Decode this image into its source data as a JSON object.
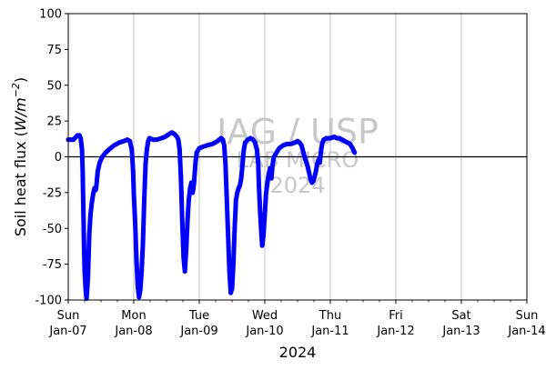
{
  "chart_data": {
    "type": "scatter",
    "title": "",
    "xlabel": "2024",
    "ylabel": "Soil heat flux (W/m⁻²)",
    "ylabel_parts": {
      "prefix": "Soil heat flux (",
      "unit": "W/m",
      "exponent": "−2",
      "suffix": ")"
    },
    "xlim": [
      "2024-01-07",
      "2024-01-14"
    ],
    "ylim": [
      -100,
      100
    ],
    "yticks": [
      -100,
      -75,
      -50,
      -25,
      0,
      25,
      50,
      75,
      100
    ],
    "xticks": [
      {
        "day": "Sun",
        "date": "Jan-07"
      },
      {
        "day": "Mon",
        "date": "Jan-08"
      },
      {
        "day": "Tue",
        "date": "Jan-09"
      },
      {
        "day": "Wed",
        "date": "Jan-10"
      },
      {
        "day": "Thu",
        "date": "Jan-11"
      },
      {
        "day": "Fri",
        "date": "Jan-12"
      },
      {
        "day": "Sat",
        "date": "Jan-13"
      },
      {
        "day": "Sun",
        "date": "Jan-14"
      }
    ],
    "grid": "vertical",
    "zero_line": true,
    "marker_color": "#0000ff",
    "x_format": "day-of-month + hour (2024-01)",
    "series": [
      {
        "points": [
          [
            7.0,
            12
          ],
          [
            7.04,
            12
          ],
          [
            7.08,
            12
          ],
          [
            7.1,
            13
          ],
          [
            7.12,
            14
          ],
          [
            7.14,
            15
          ],
          [
            7.17,
            15
          ],
          [
            7.19,
            13
          ],
          [
            7.21,
            5
          ],
          [
            7.22,
            -10
          ],
          [
            7.23,
            -35
          ],
          [
            7.24,
            -60
          ],
          [
            7.25,
            -80
          ],
          [
            7.27,
            -96
          ],
          [
            7.28,
            -99
          ],
          [
            7.3,
            -85
          ],
          [
            7.32,
            -55
          ],
          [
            7.34,
            -40
          ],
          [
            7.36,
            -32
          ],
          [
            7.38,
            -26
          ],
          [
            7.4,
            -22
          ],
          [
            7.42,
            -23
          ],
          [
            7.43,
            -20
          ],
          [
            7.45,
            -10
          ],
          [
            7.48,
            -4
          ],
          [
            7.52,
            0
          ],
          [
            7.57,
            3
          ],
          [
            7.62,
            5
          ],
          [
            7.7,
            8
          ],
          [
            7.78,
            10
          ],
          [
            7.85,
            11
          ],
          [
            7.9,
            12
          ],
          [
            7.94,
            11
          ],
          [
            7.97,
            5
          ],
          [
            7.99,
            -10
          ],
          [
            8.0,
            -25
          ],
          [
            8.02,
            -45
          ],
          [
            8.04,
            -70
          ],
          [
            8.06,
            -90
          ],
          [
            8.08,
            -98
          ],
          [
            8.1,
            -93
          ],
          [
            8.12,
            -80
          ],
          [
            8.14,
            -60
          ],
          [
            8.16,
            -30
          ],
          [
            8.18,
            -5
          ],
          [
            8.2,
            5
          ],
          [
            8.22,
            11
          ],
          [
            8.24,
            13
          ],
          [
            8.3,
            12
          ],
          [
            8.35,
            12
          ],
          [
            8.42,
            13
          ],
          [
            8.48,
            14
          ],
          [
            8.54,
            16
          ],
          [
            8.58,
            17
          ],
          [
            8.62,
            16
          ],
          [
            8.66,
            14
          ],
          [
            8.68,
            12
          ],
          [
            8.7,
            5
          ],
          [
            8.72,
            -15
          ],
          [
            8.74,
            -45
          ],
          [
            8.76,
            -70
          ],
          [
            8.78,
            -80
          ],
          [
            8.8,
            -65
          ],
          [
            8.82,
            -45
          ],
          [
            8.84,
            -30
          ],
          [
            8.86,
            -22
          ],
          [
            8.88,
            -18
          ],
          [
            8.9,
            -25
          ],
          [
            8.92,
            -18
          ],
          [
            8.94,
            -5
          ],
          [
            8.96,
            3
          ],
          [
            9.0,
            6
          ],
          [
            9.05,
            7
          ],
          [
            9.12,
            8
          ],
          [
            9.2,
            9
          ],
          [
            9.28,
            11
          ],
          [
            9.33,
            13
          ],
          [
            9.36,
            12
          ],
          [
            9.38,
            8
          ],
          [
            9.4,
            -5
          ],
          [
            9.42,
            -30
          ],
          [
            9.44,
            -55
          ],
          [
            9.46,
            -80
          ],
          [
            9.48,
            -95
          ],
          [
            9.5,
            -92
          ],
          [
            9.52,
            -75
          ],
          [
            9.54,
            -50
          ],
          [
            9.56,
            -30
          ],
          [
            9.58,
            -25
          ],
          [
            9.6,
            -22
          ],
          [
            9.62,
            -20
          ],
          [
            9.64,
            -15
          ],
          [
            9.66,
            -5
          ],
          [
            9.68,
            5
          ],
          [
            9.7,
            10
          ],
          [
            9.74,
            12
          ],
          [
            9.78,
            13
          ],
          [
            9.82,
            12
          ],
          [
            9.85,
            10
          ],
          [
            9.88,
            5
          ],
          [
            9.9,
            -5
          ],
          [
            9.91,
            -20
          ],
          [
            9.93,
            -40
          ],
          [
            9.95,
            -55
          ],
          [
            9.96,
            -62
          ],
          [
            9.98,
            -55
          ],
          [
            10.0,
            -40
          ],
          [
            10.02,
            -25
          ],
          [
            10.04,
            -18
          ],
          [
            10.06,
            -12
          ],
          [
            10.08,
            -8
          ],
          [
            10.1,
            -15
          ],
          [
            10.12,
            -5
          ],
          [
            10.14,
            0
          ],
          [
            10.18,
            3
          ],
          [
            10.22,
            6
          ],
          [
            10.28,
            8
          ],
          [
            10.34,
            9
          ],
          [
            10.4,
            9
          ],
          [
            10.46,
            10
          ],
          [
            10.5,
            11
          ],
          [
            10.53,
            10
          ],
          [
            10.56,
            8
          ],
          [
            10.59,
            3
          ],
          [
            10.62,
            -2
          ],
          [
            10.65,
            -6
          ],
          [
            10.68,
            -12
          ],
          [
            10.7,
            -16
          ],
          [
            10.72,
            -18
          ],
          [
            10.74,
            -17
          ],
          [
            10.76,
            -14
          ],
          [
            10.78,
            -10
          ],
          [
            10.8,
            -5
          ],
          [
            10.82,
            -2
          ],
          [
            10.84,
            -4
          ],
          [
            10.86,
            5
          ],
          [
            10.88,
            10
          ],
          [
            10.9,
            12
          ],
          [
            10.94,
            13
          ],
          [
            11.0,
            13
          ],
          [
            11.06,
            14
          ],
          [
            11.1,
            13
          ],
          [
            11.14,
            13
          ],
          [
            11.18,
            12
          ],
          [
            11.22,
            11
          ],
          [
            11.26,
            10
          ],
          [
            11.3,
            9
          ],
          [
            11.34,
            6
          ],
          [
            11.37,
            3
          ]
        ]
      }
    ]
  },
  "watermark": {
    "line1": "IAG / USP",
    "line2": "LAB MICRO",
    "line3": "2024"
  }
}
